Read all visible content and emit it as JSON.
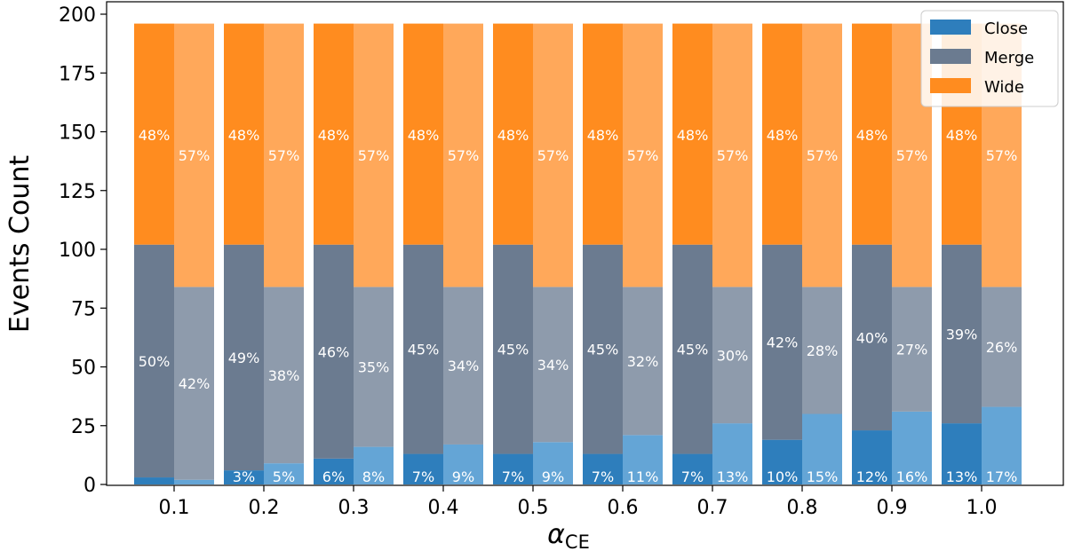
{
  "chart_data": {
    "type": "bar",
    "stacked": true,
    "grouped": true,
    "categories": [
      "0.1",
      "0.2",
      "0.3",
      "0.4",
      "0.5",
      "0.6",
      "0.7",
      "0.8",
      "0.9",
      "1.0"
    ],
    "xlabel": "α",
    "xlabel_subscript": "CE",
    "ylabel": "Events Count",
    "ylim": [
      0,
      200
    ],
    "yticks": [
      0,
      25,
      50,
      75,
      100,
      125,
      150,
      175,
      200
    ],
    "grid": false,
    "legend_position": "top-right",
    "groups": [
      {
        "stacks": [
          {
            "name": "Close",
            "values": [
              3,
              6,
              11,
              13,
              13,
              13,
              13,
              19,
              23,
              26
            ],
            "labels": [
              "",
              "3%",
              "6%",
              "7%",
              "7%",
              "7%",
              "7%",
              "10%",
              "12%",
              "13%"
            ]
          },
          {
            "name": "Merge",
            "values": [
              99,
              96,
              91,
              89,
              89,
              89,
              89,
              83,
              79,
              76
            ],
            "labels": [
              "50%",
              "49%",
              "46%",
              "45%",
              "45%",
              "45%",
              "45%",
              "42%",
              "40%",
              "39%"
            ]
          },
          {
            "name": "Wide",
            "values": [
              94,
              94,
              94,
              94,
              94,
              94,
              94,
              94,
              94,
              94
            ],
            "labels": [
              "48%",
              "48%",
              "48%",
              "48%",
              "48%",
              "48%",
              "48%",
              "48%",
              "48%",
              "48%"
            ]
          }
        ]
      },
      {
        "stacks": [
          {
            "name": "Close",
            "values": [
              2,
              9,
              16,
              17,
              18,
              21,
              26,
              30,
              31,
              33
            ],
            "labels": [
              "",
              "5%",
              "8%",
              "9%",
              "9%",
              "11%",
              "13%",
              "15%",
              "16%",
              "17%"
            ]
          },
          {
            "name": "Merge",
            "values": [
              82,
              75,
              68,
              67,
              66,
              63,
              58,
              54,
              53,
              51
            ],
            "labels": [
              "42%",
              "38%",
              "35%",
              "34%",
              "34%",
              "32%",
              "30%",
              "28%",
              "27%",
              "26%"
            ]
          },
          {
            "name": "Wide",
            "values": [
              112,
              112,
              112,
              112,
              112,
              112,
              112,
              112,
              112,
              112
            ],
            "labels": [
              "57%",
              "57%",
              "57%",
              "57%",
              "57%",
              "57%",
              "57%",
              "57%",
              "57%",
              "57%"
            ]
          }
        ]
      }
    ],
    "legend": [
      "Close",
      "Merge",
      "Wide"
    ],
    "colors": {
      "close_dark": "#2e7ebc",
      "close_light": "#64a5d6",
      "merge_dark": "#6b7b90",
      "merge_light": "#8e9bac",
      "wide_dark": "#ff8c1f",
      "wide_light": "#ffa85a"
    }
  }
}
